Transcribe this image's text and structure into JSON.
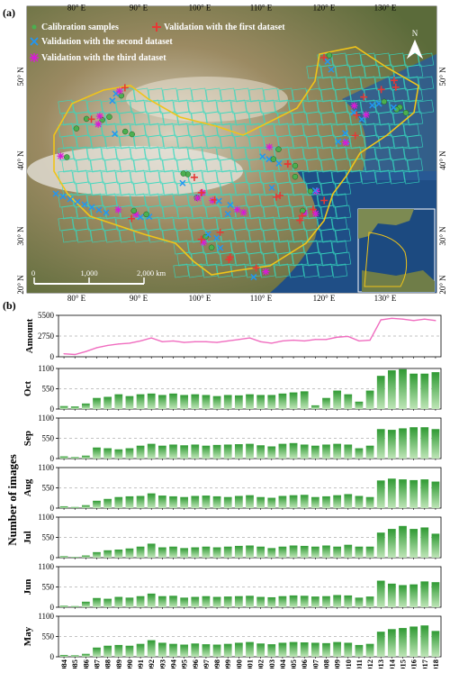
{
  "panel_a": {
    "label": "(a)",
    "legend": [
      {
        "label": "Calibration samples",
        "symbol": "dot",
        "color": "#4caf50"
      },
      {
        "label": "Validation with the first dataset",
        "symbol": "cross",
        "color": "#e53935"
      },
      {
        "label": "Validation with the second dataset",
        "symbol": "x",
        "color": "#2196f3"
      },
      {
        "label": "Validation with the third dataset",
        "symbol": "star",
        "color": "#d81bd6"
      }
    ],
    "lon_ticks": [
      "80° E",
      "90° E",
      "100° E",
      "110° E",
      "120° E",
      "130° E"
    ],
    "lat_ticks": [
      "50° N",
      "40° N",
      "30° N",
      "20° N"
    ],
    "north_label": "N",
    "scale_labels": [
      "0",
      "1,000",
      "2,000 km"
    ],
    "colors": {
      "grid": "#35d9c0",
      "border": "#f0c419",
      "land": "#8a7a55",
      "sea": "#1f4e86"
    }
  },
  "panel_b": {
    "label": "(b)",
    "y_axis_title": "Number of images"
  },
  "chart_data": [
    {
      "type": "line",
      "ylabel": "Amount",
      "yticks": [
        "5500",
        "2750",
        "0"
      ],
      "ylim": [
        0,
        5500
      ],
      "color": "#f06cbf",
      "x": [
        "1984",
        "1985",
        "1986",
        "1987",
        "1988",
        "1989",
        "1990",
        "1991",
        "1992",
        "1993",
        "1994",
        "1995",
        "1996",
        "1997",
        "1998",
        "1999",
        "2000",
        "2001",
        "2002",
        "2003",
        "2004",
        "2005",
        "2006",
        "2007",
        "2008",
        "2009",
        "2010",
        "2011",
        "2012",
        "2013",
        "2014",
        "2015",
        "2016",
        "2017",
        "2018"
      ],
      "values": [
        400,
        300,
        700,
        1200,
        1500,
        1700,
        1800,
        2100,
        2500,
        2000,
        2100,
        1900,
        2000,
        2000,
        1900,
        2100,
        2300,
        2500,
        2000,
        1800,
        2100,
        2200,
        2100,
        2300,
        2300,
        2600,
        2700,
        2100,
        2200,
        4900,
        5100,
        5000,
        4800,
        5000,
        4800
      ]
    },
    {
      "type": "bar",
      "ylabel": "Oct",
      "yticks": [
        "1100",
        "550",
        "0"
      ],
      "ylim": [
        0,
        1100
      ],
      "color": "#3aa53a",
      "categories": [
        "1984",
        "1985",
        "1986",
        "1987",
        "1988",
        "1989",
        "1990",
        "1991",
        "1992",
        "1993",
        "1994",
        "1995",
        "1996",
        "1997",
        "1998",
        "1999",
        "2000",
        "2001",
        "2002",
        "2003",
        "2004",
        "2005",
        "2006",
        "2007",
        "2008",
        "2009",
        "2010",
        "2011",
        "2012",
        "2013",
        "2014",
        "2015",
        "2016",
        "2017",
        "2018"
      ],
      "values": [
        80,
        70,
        150,
        300,
        330,
        400,
        350,
        400,
        420,
        380,
        420,
        380,
        400,
        380,
        350,
        380,
        370,
        400,
        380,
        380,
        420,
        450,
        480,
        100,
        300,
        500,
        400,
        200,
        500,
        900,
        1050,
        1080,
        960,
        960,
        1000
      ]
    },
    {
      "type": "bar",
      "ylabel": "Sep",
      "yticks": [
        "1100",
        "550",
        "0"
      ],
      "ylim": [
        0,
        1100
      ],
      "color": "#3aa53a",
      "categories": [
        "1984",
        "1985",
        "1986",
        "1987",
        "1988",
        "1989",
        "1990",
        "1991",
        "1992",
        "1993",
        "1994",
        "1995",
        "1996",
        "1997",
        "1998",
        "1999",
        "2000",
        "2001",
        "2002",
        "2003",
        "2004",
        "2005",
        "2006",
        "2007",
        "2008",
        "2009",
        "2010",
        "2011",
        "2012",
        "2013",
        "2014",
        "2015",
        "2016",
        "2017",
        "2018"
      ],
      "values": [
        60,
        40,
        80,
        300,
        280,
        250,
        280,
        350,
        400,
        350,
        380,
        360,
        380,
        350,
        370,
        380,
        390,
        400,
        360,
        330,
        400,
        420,
        380,
        350,
        380,
        400,
        380,
        280,
        350,
        800,
        780,
        820,
        850,
        850,
        800
      ]
    },
    {
      "type": "bar",
      "ylabel": "Aug",
      "yticks": [
        "1100",
        "550",
        "0"
      ],
      "ylim": [
        0,
        1100
      ],
      "color": "#3aa53a",
      "categories": [
        "1984",
        "1985",
        "1986",
        "1987",
        "1988",
        "1989",
        "1990",
        "1991",
        "1992",
        "1993",
        "1994",
        "1995",
        "1996",
        "1997",
        "1998",
        "1999",
        "2000",
        "2001",
        "2002",
        "2003",
        "2004",
        "2005",
        "2006",
        "2007",
        "2008",
        "2009",
        "2010",
        "2011",
        "2012",
        "2013",
        "2014",
        "2015",
        "2016",
        "2017",
        "2018"
      ],
      "values": [
        50,
        30,
        80,
        200,
        250,
        300,
        320,
        330,
        400,
        340,
        320,
        300,
        330,
        340,
        320,
        300,
        330,
        350,
        300,
        280,
        330,
        350,
        360,
        300,
        320,
        350,
        380,
        330,
        300,
        750,
        800,
        780,
        760,
        780,
        720
      ]
    },
    {
      "type": "bar",
      "ylabel": "Jul",
      "yticks": [
        "1100",
        "550",
        "0"
      ],
      "ylim": [
        0,
        1100
      ],
      "color": "#3aa53a",
      "categories": [
        "1984",
        "1985",
        "1986",
        "1987",
        "1988",
        "1989",
        "1990",
        "1991",
        "1992",
        "1993",
        "1994",
        "1995",
        "1996",
        "1997",
        "1998",
        "1999",
        "2000",
        "2001",
        "2002",
        "2003",
        "2004",
        "2005",
        "2006",
        "2007",
        "2008",
        "2009",
        "2010",
        "2011",
        "2012",
        "2013",
        "2014",
        "2015",
        "2016",
        "2017",
        "2018"
      ],
      "values": [
        40,
        20,
        60,
        150,
        200,
        220,
        250,
        300,
        380,
        280,
        300,
        260,
        280,
        300,
        280,
        300,
        320,
        330,
        300,
        260,
        300,
        330,
        320,
        300,
        330,
        300,
        350,
        300,
        300,
        680,
        780,
        860,
        780,
        820,
        650
      ]
    },
    {
      "type": "bar",
      "ylabel": "Jun",
      "yticks": [
        "1100",
        "550",
        "0"
      ],
      "ylim": [
        0,
        1100
      ],
      "color": "#3aa53a",
      "categories": [
        "1984",
        "1985",
        "1986",
        "1987",
        "1988",
        "1989",
        "1990",
        "1991",
        "1992",
        "1993",
        "1994",
        "1995",
        "1996",
        "1997",
        "1998",
        "1999",
        "2000",
        "2001",
        "2002",
        "2003",
        "2004",
        "2005",
        "2006",
        "2007",
        "2008",
        "2009",
        "2010",
        "2011",
        "2012",
        "2013",
        "2014",
        "2015",
        "2016",
        "2017",
        "2018"
      ],
      "values": [
        40,
        30,
        150,
        250,
        230,
        280,
        260,
        300,
        370,
        300,
        310,
        260,
        280,
        300,
        280,
        290,
        300,
        310,
        280,
        270,
        300,
        320,
        310,
        290,
        300,
        330,
        320,
        260,
        290,
        720,
        640,
        600,
        620,
        700,
        680
      ]
    },
    {
      "type": "bar",
      "ylabel": "May",
      "yticks": [
        "1100",
        "550",
        "0"
      ],
      "ylim": [
        0,
        1100
      ],
      "color": "#3aa53a",
      "categories": [
        "1984",
        "1985",
        "1986",
        "1987",
        "1988",
        "1989",
        "1990",
        "1991",
        "1992",
        "1993",
        "1994",
        "1995",
        "1996",
        "1997",
        "1998",
        "1999",
        "2000",
        "2001",
        "2002",
        "2003",
        "2004",
        "2005",
        "2006",
        "2007",
        "2008",
        "2009",
        "2010",
        "2011",
        "2012",
        "2013",
        "2014",
        "2015",
        "2016",
        "2017",
        "2018"
      ],
      "values": [
        50,
        40,
        80,
        250,
        300,
        320,
        300,
        350,
        450,
        380,
        350,
        330,
        360,
        340,
        330,
        350,
        380,
        400,
        360,
        340,
        380,
        400,
        390,
        380,
        370,
        400,
        380,
        320,
        350,
        680,
        750,
        780,
        820,
        850,
        700
      ]
    }
  ]
}
